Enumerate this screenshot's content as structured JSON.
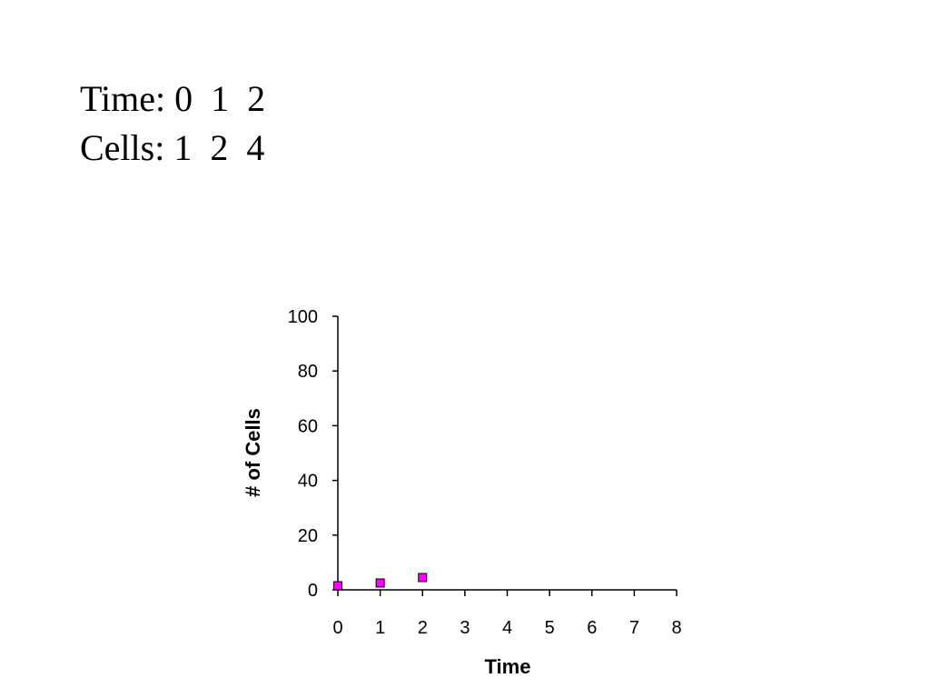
{
  "slide": {
    "line1_label": "Time:",
    "line1_values": [
      "0",
      "1",
      "2"
    ],
    "line2_label": "Cells:",
    "line2_values": [
      "1",
      "2",
      "4"
    ]
  },
  "chart_data": {
    "type": "scatter",
    "xlabel": "Time",
    "ylabel": "# of Cells",
    "xlim": [
      0,
      8
    ],
    "ylim": [
      0,
      100
    ],
    "x_ticks": [
      0,
      1,
      2,
      3,
      4,
      5,
      6,
      7,
      8
    ],
    "y_ticks": [
      0,
      20,
      40,
      60,
      80,
      100
    ],
    "grid": false,
    "marker_color": "#FF00FF",
    "points": [
      {
        "x": 0,
        "y": 1
      },
      {
        "x": 1,
        "y": 2
      },
      {
        "x": 2,
        "y": 4
      }
    ]
  }
}
